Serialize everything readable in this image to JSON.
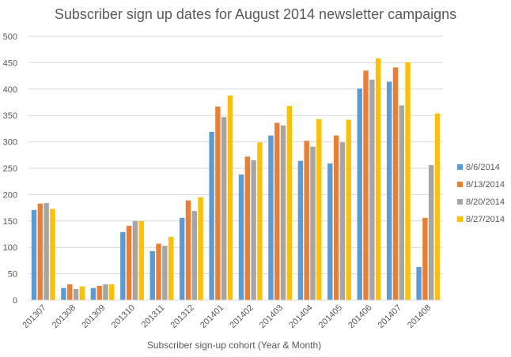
{
  "chart_data": {
    "type": "bar",
    "title": "Subscriber sign up dates for August 2014 newsletter campaigns",
    "xlabel": "Subscriber sign-up cohort (Year & Month)",
    "ylabel": "",
    "ylim": [
      0,
      500
    ],
    "yticks": [
      0,
      50,
      100,
      150,
      200,
      250,
      300,
      350,
      400,
      450,
      500
    ],
    "grid": true,
    "legend_position": "right",
    "categories": [
      "201307",
      "201308",
      "201309",
      "201310",
      "201311",
      "201312",
      "201401",
      "201402",
      "201403",
      "201404",
      "201405",
      "201406",
      "201407",
      "201408"
    ],
    "series": [
      {
        "name": "8/6/2014",
        "color": "#5B9BD5",
        "values": [
          171,
          23,
          23,
          129,
          93,
          156,
          319,
          238,
          312,
          264,
          259,
          401,
          414,
          63
        ]
      },
      {
        "name": "8/13/2014",
        "color": "#ED7D31",
        "values": [
          183,
          30,
          27,
          141,
          107,
          189,
          367,
          272,
          336,
          302,
          312,
          435,
          441,
          156
        ]
      },
      {
        "name": "8/20/2014",
        "color": "#A5A5A5",
        "values": [
          184,
          21,
          30,
          150,
          103,
          169,
          347,
          265,
          331,
          291,
          299,
          418,
          369,
          256
        ]
      },
      {
        "name": "8/27/2014",
        "color": "#FFC000",
        "values": [
          173,
          26,
          30,
          150,
          120,
          195,
          388,
          299,
          368,
          343,
          342,
          458,
          451,
          354
        ]
      }
    ]
  }
}
